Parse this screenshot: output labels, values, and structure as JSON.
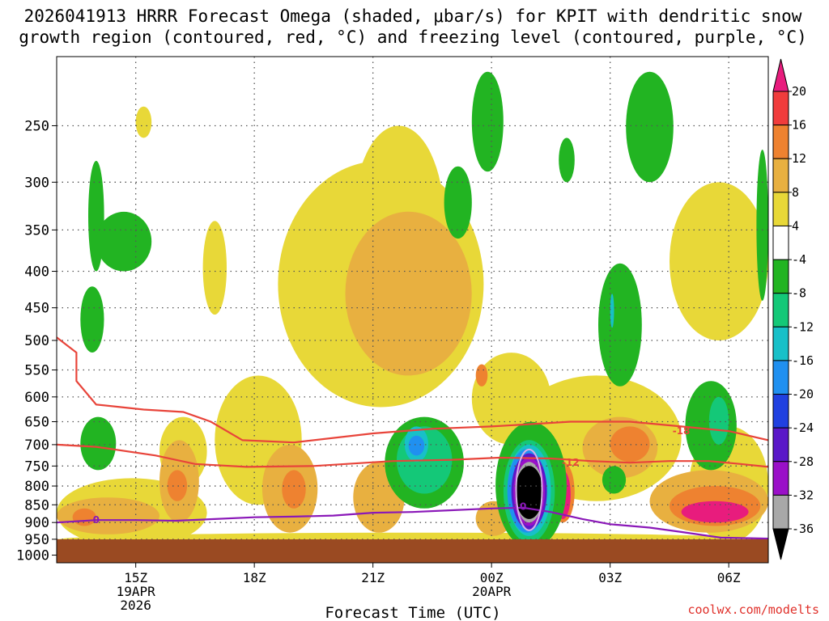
{
  "title": {
    "line1": "2026041913 HRRR Forecast Omega (shaded, μbar/s) for KPIT with dendritic snow",
    "line2": "growth region (contoured, red, °C) and freezing level (contoured, purple, °C)"
  },
  "credit": "coolwx.com/modelts",
  "colors": {
    "ground": "#9a4a22",
    "dgz_contour": "#e8443a",
    "freezing_contour": "#8a18b8",
    "grid": "#555555"
  },
  "chart_data": {
    "type": "heatmap",
    "title": "HRRR Forecast Omega (shaded, μbar/s) for KPIT with dendritic snow growth region (contoured, red, °C) and freezing level (contoured, purple, °C)",
    "run": "2026041913",
    "station": "KPIT",
    "xlabel": "Forecast Time (UTC)",
    "ylabel": "",
    "x_range_hours": [
      13.0,
      31.0
    ],
    "y_range_mb": [
      200,
      1025
    ],
    "y_ticks": [
      {
        "value": 250,
        "label": "250"
      },
      {
        "value": 300,
        "label": "300"
      },
      {
        "value": 350,
        "label": "350"
      },
      {
        "value": 400,
        "label": "400"
      },
      {
        "value": 450,
        "label": "450"
      },
      {
        "value": 500,
        "label": "500"
      },
      {
        "value": 550,
        "label": "550"
      },
      {
        "value": 600,
        "label": "600"
      },
      {
        "value": 650,
        "label": "650"
      },
      {
        "value": 700,
        "label": "700"
      },
      {
        "value": 750,
        "label": "750"
      },
      {
        "value": 800,
        "label": "800"
      },
      {
        "value": 850,
        "label": "850"
      },
      {
        "value": 900,
        "label": "900"
      },
      {
        "value": 950,
        "label": "950"
      },
      {
        "value": 1000,
        "label": "1000"
      }
    ],
    "x_ticks": [
      {
        "hour": 15,
        "label": "15Z",
        "date": "19APR",
        "year": "2026"
      },
      {
        "hour": 18,
        "label": "18Z",
        "date": "",
        "year": ""
      },
      {
        "hour": 21,
        "label": "21Z",
        "date": "",
        "year": ""
      },
      {
        "hour": 24,
        "label": "00Z",
        "date": "20APR",
        "year": ""
      },
      {
        "hour": 27,
        "label": "03Z",
        "date": "",
        "year": ""
      },
      {
        "hour": 30,
        "label": "06Z",
        "date": "",
        "year": ""
      }
    ],
    "colorbar": {
      "min": -36,
      "max": 20,
      "labels": [
        "20",
        "16",
        "12",
        "8",
        "4",
        "-4",
        "-8",
        "-12",
        "-16",
        "-20",
        "-24",
        "-28",
        "-32",
        "-36"
      ],
      "bins": [
        {
          "lo": 20,
          "hi": 24,
          "color": "#e81c7d"
        },
        {
          "lo": 16,
          "hi": 20,
          "color": "#f03c3c"
        },
        {
          "lo": 12,
          "hi": 16,
          "color": "#ee8230"
        },
        {
          "lo": 8,
          "hi": 12,
          "color": "#e8b040"
        },
        {
          "lo": 4,
          "hi": 8,
          "color": "#e8d838"
        },
        {
          "lo": -4,
          "hi": 4,
          "color": "#ffffff"
        },
        {
          "lo": -8,
          "hi": -4,
          "color": "#22b422"
        },
        {
          "lo": -12,
          "hi": -8,
          "color": "#14c878"
        },
        {
          "lo": -16,
          "hi": -12,
          "color": "#18c0c8"
        },
        {
          "lo": -20,
          "hi": -16,
          "color": "#2090f0"
        },
        {
          "lo": -24,
          "hi": -20,
          "color": "#2040e0"
        },
        {
          "lo": -28,
          "hi": -24,
          "color": "#5a18c8"
        },
        {
          "lo": -32,
          "hi": -28,
          "color": "#9a10c8"
        },
        {
          "lo": -36,
          "hi": -32,
          "color": "#a8a8a8"
        },
        {
          "lo": -40,
          "hi": -36,
          "color": "#000000"
        }
      ]
    },
    "omega_features": [
      {
        "kind": "rise",
        "value": 6,
        "t0": 13.0,
        "t1": 31.0,
        "p0": 930,
        "p1": 975
      },
      {
        "kind": "rise",
        "value": 6,
        "t0": 13.0,
        "t1": 16.8,
        "p0": 780,
        "p1": 975
      },
      {
        "kind": "rise",
        "value": 6,
        "t0": 15.6,
        "t1": 16.8,
        "p0": 640,
        "p1": 800
      },
      {
        "kind": "rise",
        "value": 6,
        "t0": 16.7,
        "t1": 17.3,
        "p0": 340,
        "p1": 460
      },
      {
        "kind": "rise",
        "value": 6,
        "t0": 17.0,
        "t1": 19.2,
        "p0": 560,
        "p1": 850
      },
      {
        "kind": "rise",
        "value": 6,
        "t0": 18.6,
        "t1": 23.8,
        "p0": 280,
        "p1": 620
      },
      {
        "kind": "rise",
        "value": 6,
        "t0": 20.5,
        "t1": 22.8,
        "p0": 250,
        "p1": 460
      },
      {
        "kind": "rise",
        "value": 6,
        "t0": 23.5,
        "t1": 25.5,
        "p0": 520,
        "p1": 700
      },
      {
        "kind": "rise",
        "value": 6,
        "t0": 24.5,
        "t1": 28.8,
        "p0": 560,
        "p1": 840
      },
      {
        "kind": "rise",
        "value": 6,
        "t0": 28.5,
        "t1": 31.0,
        "p0": 300,
        "p1": 500
      },
      {
        "kind": "rise",
        "value": 6,
        "t0": 29.0,
        "t1": 31.0,
        "p0": 660,
        "p1": 960
      },
      {
        "kind": "rise",
        "value": 6,
        "t0": 15.0,
        "t1": 15.4,
        "p0": 235,
        "p1": 260
      },
      {
        "kind": "rise",
        "value": 10,
        "t0": 13.0,
        "t1": 15.6,
        "p0": 830,
        "p1": 935
      },
      {
        "kind": "rise",
        "value": 10,
        "t0": 15.6,
        "t1": 16.6,
        "p0": 690,
        "p1": 900
      },
      {
        "kind": "rise",
        "value": 10,
        "t0": 18.2,
        "t1": 19.6,
        "p0": 700,
        "p1": 930
      },
      {
        "kind": "rise",
        "value": 10,
        "t0": 20.3,
        "t1": 23.5,
        "p0": 330,
        "p1": 560
      },
      {
        "kind": "rise",
        "value": 10,
        "t0": 20.5,
        "t1": 21.8,
        "p0": 740,
        "p1": 930
      },
      {
        "kind": "rise",
        "value": 10,
        "t0": 23.6,
        "t1": 24.5,
        "p0": 840,
        "p1": 940
      },
      {
        "kind": "rise",
        "value": 10,
        "t0": 26.3,
        "t1": 28.2,
        "p0": 640,
        "p1": 780
      },
      {
        "kind": "rise",
        "value": 10,
        "t0": 28.0,
        "t1": 31.0,
        "p0": 760,
        "p1": 930
      },
      {
        "kind": "rise",
        "value": 14,
        "t0": 13.4,
        "t1": 14.0,
        "p0": 860,
        "p1": 910
      },
      {
        "kind": "rise",
        "value": 14,
        "t0": 15.8,
        "t1": 16.3,
        "p0": 760,
        "p1": 840
      },
      {
        "kind": "rise",
        "value": 14,
        "t0": 18.7,
        "t1": 19.3,
        "p0": 760,
        "p1": 860
      },
      {
        "kind": "rise",
        "value": 14,
        "t0": 23.6,
        "t1": 23.9,
        "p0": 540,
        "p1": 580
      },
      {
        "kind": "rise",
        "value": 14,
        "t0": 25.5,
        "t1": 26.1,
        "p0": 740,
        "p1": 900
      },
      {
        "kind": "rise",
        "value": 14,
        "t0": 27.0,
        "t1": 28.0,
        "p0": 660,
        "p1": 740
      },
      {
        "kind": "rise",
        "value": 14,
        "t0": 28.5,
        "t1": 30.8,
        "p0": 800,
        "p1": 910
      },
      {
        "kind": "rise",
        "value": 22,
        "t0": 25.6,
        "t1": 26.0,
        "p0": 760,
        "p1": 890
      },
      {
        "kind": "rise",
        "value": 22,
        "t0": 28.8,
        "t1": 30.5,
        "p0": 840,
        "p1": 900
      },
      {
        "kind": "sink",
        "value": -6,
        "t0": 13.8,
        "t1": 14.2,
        "p0": 280,
        "p1": 400
      },
      {
        "kind": "sink",
        "value": -6,
        "t0": 14.0,
        "t1": 15.4,
        "p0": 330,
        "p1": 400
      },
      {
        "kind": "sink",
        "value": -6,
        "t0": 13.6,
        "t1": 14.2,
        "p0": 420,
        "p1": 520
      },
      {
        "kind": "sink",
        "value": -6,
        "t0": 13.6,
        "t1": 14.5,
        "p0": 640,
        "p1": 760
      },
      {
        "kind": "sink",
        "value": -6,
        "t0": 21.3,
        "t1": 23.3,
        "p0": 640,
        "p1": 860
      },
      {
        "kind": "sink",
        "value": -6,
        "t0": 22.8,
        "t1": 23.5,
        "p0": 285,
        "p1": 360
      },
      {
        "kind": "sink",
        "value": -6,
        "t0": 23.5,
        "t1": 24.3,
        "p0": 210,
        "p1": 290
      },
      {
        "kind": "sink",
        "value": -6,
        "t0": 24.1,
        "t1": 25.9,
        "p0": 650,
        "p1": 980
      },
      {
        "kind": "sink",
        "value": -6,
        "t0": 25.7,
        "t1": 26.1,
        "p0": 260,
        "p1": 300
      },
      {
        "kind": "sink",
        "value": -6,
        "t0": 26.7,
        "t1": 27.8,
        "p0": 390,
        "p1": 580
      },
      {
        "kind": "sink",
        "value": -6,
        "t0": 27.4,
        "t1": 28.6,
        "p0": 210,
        "p1": 300
      },
      {
        "kind": "sink",
        "value": -6,
        "t0": 28.9,
        "t1": 30.2,
        "p0": 570,
        "p1": 760
      },
      {
        "kind": "sink",
        "value": -6,
        "t0": 30.7,
        "t1": 31.0,
        "p0": 270,
        "p1": 440
      },
      {
        "kind": "sink",
        "value": -6,
        "t0": 26.8,
        "t1": 27.4,
        "p0": 750,
        "p1": 820
      },
      {
        "kind": "sink",
        "value": -10,
        "t0": 21.6,
        "t1": 23.0,
        "p0": 660,
        "p1": 820
      },
      {
        "kind": "sink",
        "value": -10,
        "t0": 24.3,
        "t1": 25.6,
        "p0": 690,
        "p1": 960
      },
      {
        "kind": "sink",
        "value": -10,
        "t0": 29.5,
        "t1": 30.0,
        "p0": 600,
        "p1": 700
      },
      {
        "kind": "sink",
        "value": -14,
        "t0": 21.8,
        "t1": 22.4,
        "p0": 660,
        "p1": 740
      },
      {
        "kind": "sink",
        "value": -14,
        "t0": 24.4,
        "t1": 25.5,
        "p0": 700,
        "p1": 940
      },
      {
        "kind": "sink",
        "value": -14,
        "t0": 27.0,
        "t1": 27.1,
        "p0": 430,
        "p1": 480
      },
      {
        "kind": "sink",
        "value": -18,
        "t0": 21.9,
        "t1": 22.3,
        "p0": 680,
        "p1": 725
      },
      {
        "kind": "sink",
        "value": -18,
        "t0": 24.4,
        "t1": 25.4,
        "p0": 710,
        "p1": 930
      },
      {
        "kind": "sink",
        "value": -26,
        "t0": 24.5,
        "t1": 25.4,
        "p0": 720,
        "p1": 920
      },
      {
        "kind": "sink",
        "value": -30,
        "t0": 24.55,
        "t1": 25.35,
        "p0": 730,
        "p1": 910
      },
      {
        "kind": "sink",
        "value": -34,
        "t0": 24.6,
        "t1": 25.3,
        "p0": 740,
        "p1": 900
      },
      {
        "kind": "sink",
        "value": -38,
        "t0": 24.6,
        "t1": 25.3,
        "p0": 750,
        "p1": 890
      }
    ],
    "contours": [
      {
        "name": "dgz-upper",
        "label": "-18",
        "label_at": {
          "hour": 28.8,
          "mb": 670
        },
        "points": [
          [
            13.0,
            495
          ],
          [
            13.5,
            520
          ],
          [
            13.5,
            570
          ],
          [
            14.0,
            615
          ],
          [
            15.2,
            625
          ],
          [
            16.2,
            630
          ],
          [
            16.9,
            650
          ],
          [
            17.7,
            690
          ],
          [
            19.0,
            695
          ],
          [
            21.0,
            675
          ],
          [
            22.5,
            665
          ],
          [
            24.0,
            660
          ],
          [
            25.0,
            655
          ],
          [
            26.0,
            650
          ],
          [
            27.5,
            650
          ],
          [
            28.8,
            660
          ],
          [
            30.0,
            670
          ],
          [
            31.0,
            690
          ]
        ]
      },
      {
        "name": "dgz-lower",
        "label": "-12",
        "label_at": {
          "hour": 26.0,
          "mb": 742
        },
        "points": [
          [
            13.0,
            700
          ],
          [
            14.0,
            705
          ],
          [
            15.5,
            725
          ],
          [
            16.5,
            745
          ],
          [
            17.8,
            752
          ],
          [
            19.5,
            750
          ],
          [
            21.5,
            738
          ],
          [
            23.0,
            735
          ],
          [
            24.2,
            730
          ],
          [
            25.5,
            732
          ],
          [
            26.5,
            738
          ],
          [
            27.5,
            742
          ],
          [
            28.5,
            738
          ],
          [
            29.5,
            738
          ],
          [
            30.3,
            745
          ],
          [
            31.0,
            752
          ]
        ]
      },
      {
        "name": "freezing-level",
        "label": "0",
        "label_at": {
          "hour": 14.0,
          "mb": 893
        },
        "points": [
          [
            13.0,
            900
          ],
          [
            14.0,
            893
          ],
          [
            15.0,
            893
          ],
          [
            16.0,
            895
          ],
          [
            17.0,
            890
          ],
          [
            18.0,
            885
          ],
          [
            19.0,
            883
          ],
          [
            20.0,
            880
          ],
          [
            21.0,
            872
          ],
          [
            22.0,
            870
          ],
          [
            23.0,
            865
          ],
          [
            24.0,
            860
          ],
          [
            24.8,
            858
          ],
          [
            25.5,
            870
          ],
          [
            26.3,
            890
          ],
          [
            27.0,
            905
          ],
          [
            28.0,
            915
          ],
          [
            28.8,
            928
          ],
          [
            29.8,
            945
          ],
          [
            31.0,
            948
          ]
        ]
      },
      {
        "name": "freezing-blob",
        "label": "0",
        "label_at": {
          "hour": 24.8,
          "mb": 855
        },
        "points": []
      }
    ]
  }
}
